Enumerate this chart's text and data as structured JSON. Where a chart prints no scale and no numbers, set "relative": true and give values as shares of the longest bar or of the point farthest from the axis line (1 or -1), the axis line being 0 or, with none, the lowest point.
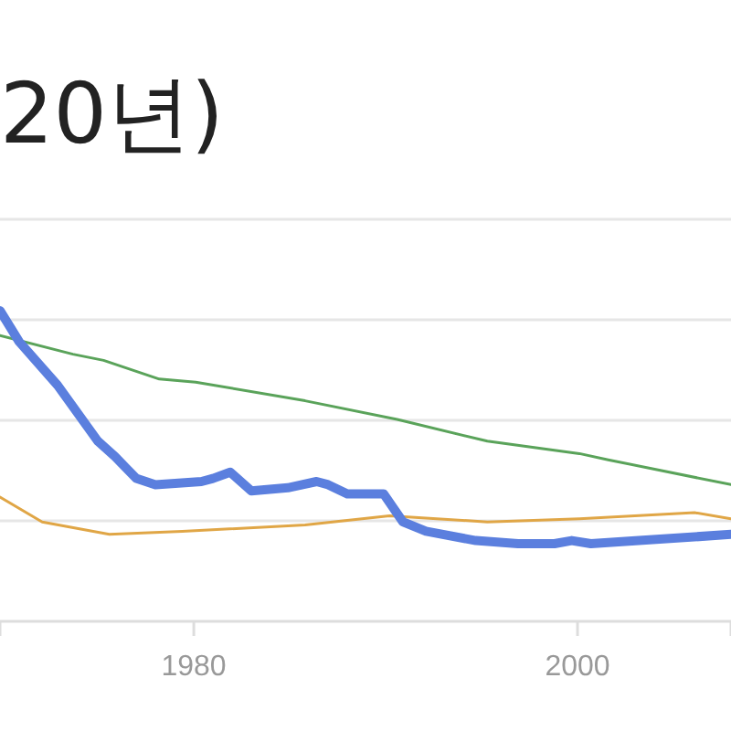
{
  "chart_data": {
    "type": "line",
    "title": "20년)",
    "relative": true,
    "grid": "y",
    "xlim": [
      1969.9,
      2008
    ],
    "xticks": [
      1980,
      2000
    ],
    "series": [
      {
        "color": "#5b7fde",
        "x": [
          1969.9,
          1970.9,
          1972.9,
          1975,
          1975.9,
          1977,
          1978,
          1980.4,
          1981,
          1981.9,
          1983,
          1984.9,
          1986.4,
          1987,
          1988,
          1989.9,
          1990.9,
          1992.1,
          1994.7,
          1996.9,
          1998.8,
          1999.7,
          2000.7,
          2003.2,
          2008
        ],
        "values": [
          1.0,
          0.9,
          0.76,
          0.58,
          0.53,
          0.46,
          0.44,
          0.45,
          0.46,
          0.48,
          0.42,
          0.43,
          0.45,
          0.44,
          0.41,
          0.41,
          0.32,
          0.29,
          0.26,
          0.25,
          0.25,
          0.26,
          0.25,
          0.26,
          0.28
        ]
      },
      {
        "color": "#5aa35a",
        "x": [
          1969.9,
          1973.7,
          1975.3,
          1978.2,
          1980.1,
          1985.8,
          1990.6,
          1995.3,
          2000.1,
          2001.6,
          2008
        ],
        "values": [
          0.92,
          0.86,
          0.84,
          0.78,
          0.77,
          0.71,
          0.65,
          0.58,
          0.54,
          0.52,
          0.44
        ]
      },
      {
        "color": "#e0a646",
        "x": [
          1969.9,
          1972.1,
          1975.6,
          1979.4,
          1985.8,
          1990.2,
          1995.3,
          2000.1,
          2006.1,
          2008
        ],
        "values": [
          0.4,
          0.32,
          0.28,
          0.29,
          0.31,
          0.34,
          0.32,
          0.33,
          0.35,
          0.33
        ]
      }
    ]
  }
}
